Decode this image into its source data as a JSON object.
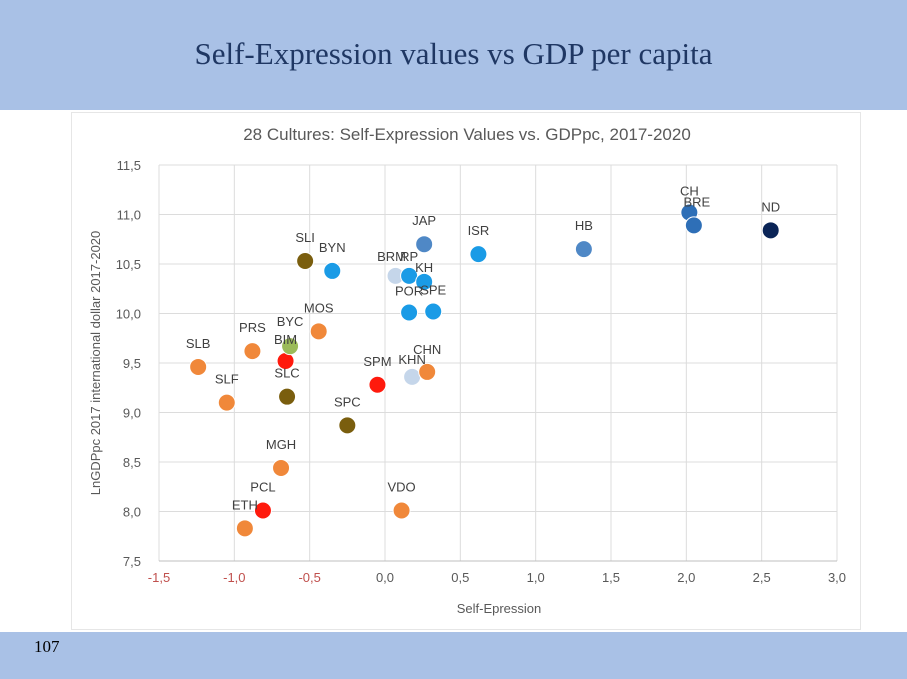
{
  "slide": {
    "title": "Self-Expression values vs GDP per capita",
    "page_number": "107"
  },
  "colors": {
    "header": "#a9c1e6",
    "orange": "#f0883a",
    "red": "#ff1a0d",
    "olive": "#7a5e0e",
    "green": "#9bbb59",
    "lightblue": "#c5d6ea",
    "skyblue": "#1a9be6",
    "midblue": "#4f88c6",
    "blue": "#2e6fb7",
    "navy": "#0a2456"
  },
  "chart_data": {
    "type": "scatter",
    "title": "28 Cultures: Self-Expression Values vs. GDPpc, 2017-2020",
    "xlabel": "Self-Epression",
    "ylabel": "LnGDPpc 2017 international dollar 2017-2020",
    "xlim": [
      -1.5,
      3.0
    ],
    "ylim": [
      7.5,
      11.5
    ],
    "x_ticks": [
      "-1,5",
      "-1,0",
      "-0,5",
      "0,0",
      "0,5",
      "1,0",
      "1,5",
      "2,0",
      "2,5",
      "3,0"
    ],
    "y_ticks": [
      "7,5",
      "8,0",
      "8,5",
      "9,0",
      "9,5",
      "10,0",
      "10,5",
      "11,0",
      "11,5"
    ],
    "points": [
      {
        "label": "SLB",
        "x": -1.24,
        "y": 9.46,
        "color": "orange"
      },
      {
        "label": "SLF",
        "x": -1.05,
        "y": 9.1,
        "color": "orange"
      },
      {
        "label": "PRS",
        "x": -0.88,
        "y": 9.62,
        "color": "orange"
      },
      {
        "label": "BIM",
        "x": -0.66,
        "y": 9.52,
        "color": "red"
      },
      {
        "label": "BYC",
        "x": -0.63,
        "y": 9.67,
        "color": "green"
      },
      {
        "label": "SLC",
        "x": -0.65,
        "y": 9.16,
        "color": "olive"
      },
      {
        "label": "SLI",
        "x": -0.53,
        "y": 10.53,
        "color": "olive"
      },
      {
        "label": "MOS",
        "x": -0.44,
        "y": 9.82,
        "color": "orange"
      },
      {
        "label": "BYN",
        "x": -0.35,
        "y": 10.43,
        "color": "skyblue"
      },
      {
        "label": "SPC",
        "x": -0.25,
        "y": 8.87,
        "color": "olive"
      },
      {
        "label": "MGH",
        "x": -0.69,
        "y": 8.44,
        "color": "orange"
      },
      {
        "label": "PCL",
        "x": -0.81,
        "y": 8.01,
        "color": "red"
      },
      {
        "label": "ETH",
        "x": -0.93,
        "y": 7.83,
        "color": "orange"
      },
      {
        "label": "SPM",
        "x": -0.05,
        "y": 9.28,
        "color": "red"
      },
      {
        "label": "VDO",
        "x": 0.11,
        "y": 8.01,
        "color": "orange"
      },
      {
        "label": "KHN",
        "x": 0.18,
        "y": 9.36,
        "color": "lightblue"
      },
      {
        "label": "CHN",
        "x": 0.28,
        "y": 9.41,
        "color": "orange"
      },
      {
        "label": "BRM",
        "x": 0.07,
        "y": 10.38,
        "color": "lightblue"
      },
      {
        "label": "RP",
        "x": 0.16,
        "y": 10.38,
        "color": "skyblue"
      },
      {
        "label": "KH",
        "x": 0.26,
        "y": 10.32,
        "color": "skyblue"
      },
      {
        "label": "POR",
        "x": 0.16,
        "y": 10.01,
        "color": "skyblue"
      },
      {
        "label": "SPE",
        "x": 0.32,
        "y": 10.02,
        "color": "skyblue"
      },
      {
        "label": "JAP",
        "x": 0.26,
        "y": 10.7,
        "color": "midblue"
      },
      {
        "label": "ISR",
        "x": 0.62,
        "y": 10.6,
        "color": "skyblue"
      },
      {
        "label": "HB",
        "x": 1.32,
        "y": 10.65,
        "color": "midblue"
      },
      {
        "label": "CH",
        "x": 2.02,
        "y": 11.02,
        "color": "blue"
      },
      {
        "label": "BRE",
        "x": 2.05,
        "y": 10.89,
        "color": "blue"
      },
      {
        "label": "ND",
        "x": 2.56,
        "y": 10.84,
        "color": "navy"
      }
    ]
  }
}
